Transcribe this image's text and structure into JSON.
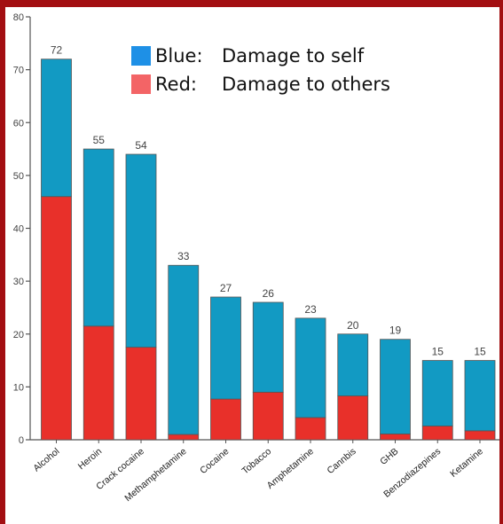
{
  "colors": {
    "self": "#129ac3",
    "others": "#e8302a",
    "frame": "#a30f12",
    "axis": "#555555",
    "text": "#444444"
  },
  "legend": [
    {
      "key": "Blue:",
      "text": "Damage to self",
      "color": "#1e90e6"
    },
    {
      "key": "Red:",
      "text": "Damage to others",
      "color": "#f36466"
    }
  ],
  "chart_data": {
    "type": "bar",
    "stacked": true,
    "categories": [
      "Alcohol",
      "Heroin",
      "Crack cocaine",
      "Methamphetamine",
      "Cocaine",
      "Tobacco",
      "Amphetamine",
      "Cannbis",
      "GHB",
      "Benzodiazepines",
      "Ketamine"
    ],
    "totals": [
      72,
      55,
      54,
      33,
      27,
      26,
      23,
      20,
      19,
      15,
      15
    ],
    "series": [
      {
        "key": "others",
        "values": [
          46,
          21.5,
          17.5,
          1,
          7.7,
          9,
          4.2,
          8.3,
          1.1,
          2.6,
          1.7
        ]
      },
      {
        "key": "self",
        "values": [
          26,
          33.5,
          36.5,
          32,
          19.3,
          17,
          18.8,
          11.7,
          17.9,
          12.4,
          13.3
        ]
      }
    ],
    "ylim": [
      0,
      80
    ],
    "yticks": [
      0,
      10,
      20,
      30,
      40,
      50,
      60,
      70,
      80
    ],
    "grid": false,
    "legend_position": "top"
  }
}
